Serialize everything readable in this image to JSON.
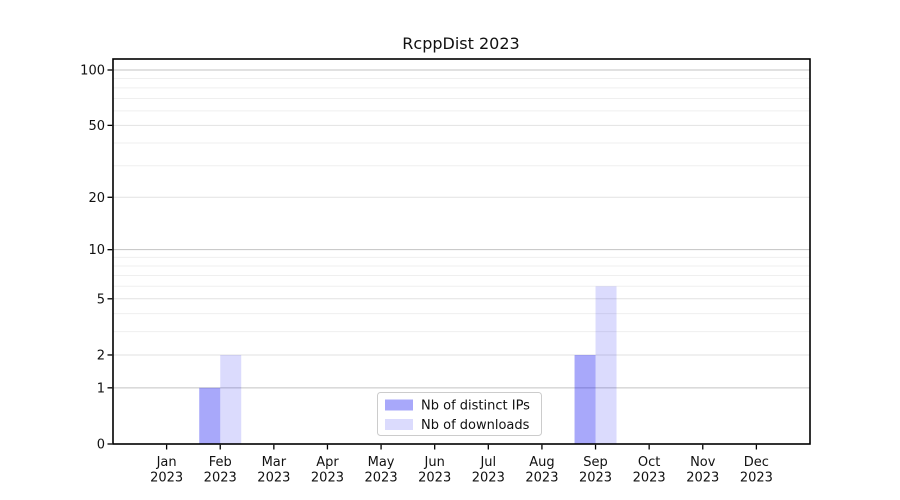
{
  "figure": {
    "background": "#ffffff"
  },
  "chart_data": {
    "type": "bar",
    "title": "RcppDist 2023",
    "categories": [
      {
        "month": "Jan",
        "year": "2023"
      },
      {
        "month": "Feb",
        "year": "2023"
      },
      {
        "month": "Mar",
        "year": "2023"
      },
      {
        "month": "Apr",
        "year": "2023"
      },
      {
        "month": "May",
        "year": "2023"
      },
      {
        "month": "Jun",
        "year": "2023"
      },
      {
        "month": "Jul",
        "year": "2023"
      },
      {
        "month": "Aug",
        "year": "2023"
      },
      {
        "month": "Sep",
        "year": "2023"
      },
      {
        "month": "Oct",
        "year": "2023"
      },
      {
        "month": "Nov",
        "year": "2023"
      },
      {
        "month": "Dec",
        "year": "2023"
      }
    ],
    "series": [
      {
        "name": "Nb of distinct IPs",
        "color": "rgba(0,0,240,0.34)",
        "values": [
          0,
          1,
          0,
          0,
          0,
          0,
          0,
          0,
          2,
          0,
          0,
          0
        ]
      },
      {
        "name": "Nb of downloads",
        "color": "rgba(0,0,240,0.14)",
        "values": [
          0,
          2,
          0,
          0,
          0,
          0,
          0,
          0,
          6,
          0,
          0,
          0
        ]
      }
    ],
    "y_scale": "log1p",
    "y_ticks": [
      0,
      1,
      2,
      5,
      10,
      20,
      50,
      100
    ],
    "y_decade_gridlines": [
      1,
      10,
      100
    ],
    "y_minor_gridlines": [
      3,
      4,
      6,
      7,
      8,
      9,
      30,
      40,
      60,
      70,
      80,
      90
    ],
    "ylim": [
      0,
      115
    ],
    "grid": "horizontal",
    "legend": {
      "position": "lower center",
      "border_color": "#cccccc",
      "background": "#ffffff"
    },
    "colors": {
      "axis": "#000000",
      "grid_decade": "#c3c3c3",
      "grid_labeled": "#e2e2e2",
      "grid_minor": "#efefef",
      "text": "#111111"
    }
  }
}
